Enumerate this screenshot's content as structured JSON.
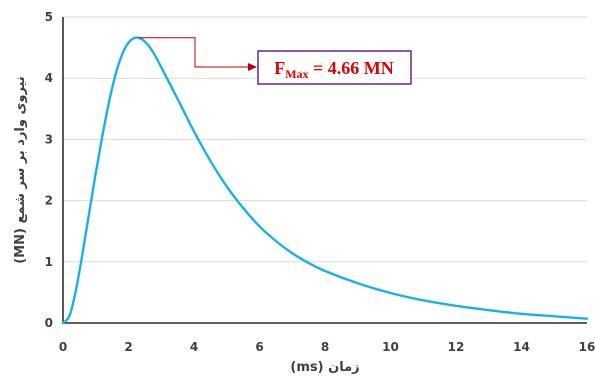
{
  "chart_data": {
    "type": "line",
    "xlabel": "زمان (ms)",
    "ylabel": "نیروی وارد بر سر شمع (MN)",
    "xlim": [
      0,
      16
    ],
    "ylim": [
      0,
      5
    ],
    "x_ticks": [
      "0",
      "2",
      "4",
      "6",
      "8",
      "10",
      "12",
      "14",
      "16"
    ],
    "y_ticks": [
      "0",
      "1",
      "2",
      "3",
      "4",
      "5"
    ],
    "grid": "horizontal",
    "legend": "none",
    "line_color": "#1ab0e8",
    "series": [
      {
        "x": [
          0,
          0.2,
          0.4,
          0.6,
          0.8,
          1.0,
          1.2,
          1.4,
          1.6,
          1.8,
          2.0,
          2.2,
          2.4,
          2.6,
          2.8,
          3.0,
          3.5,
          4.0,
          4.5,
          5.0,
          5.5,
          6.0,
          6.5,
          7.0,
          7.5,
          8.0,
          9.0,
          10.0,
          11.0,
          12.0,
          13.0,
          14.0,
          15.0,
          16.0
        ],
        "y": [
          0,
          0.12,
          0.55,
          1.15,
          1.8,
          2.45,
          3.05,
          3.6,
          4.05,
          4.38,
          4.58,
          4.66,
          4.64,
          4.54,
          4.38,
          4.18,
          3.66,
          3.13,
          2.65,
          2.23,
          1.88,
          1.58,
          1.34,
          1.14,
          0.98,
          0.85,
          0.65,
          0.49,
          0.37,
          0.28,
          0.21,
          0.15,
          0.11,
          0.07
        ]
      }
    ],
    "annotation": {
      "prefix": "F",
      "subscript": "Max",
      "suffix": " = 4.66 MN",
      "x": 2.3,
      "y": 4.66,
      "text_color": "#e00000",
      "box_border_color": "#7030a0",
      "arrow_color": "#c00000"
    }
  }
}
